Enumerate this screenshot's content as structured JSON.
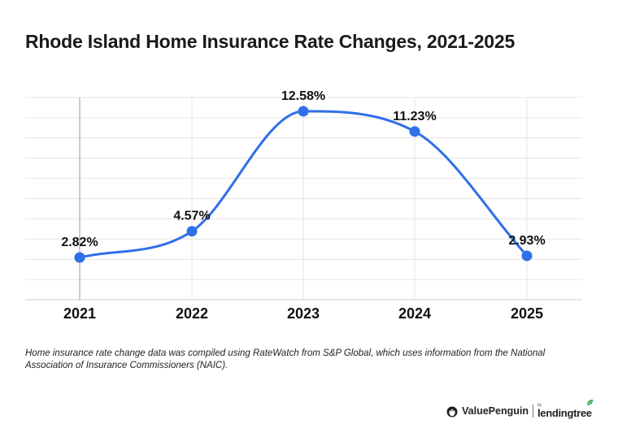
{
  "title": "Rhode Island Home Insurance Rate Changes, 2021-2025",
  "chart_data": {
    "type": "line",
    "title": "Rhode Island Home Insurance Rate Changes, 2021-2025",
    "categories": [
      "2021",
      "2022",
      "2023",
      "2024",
      "2025"
    ],
    "values": [
      2.82,
      4.57,
      12.58,
      11.23,
      2.93
    ],
    "data_labels": [
      "2.82%",
      "4.57%",
      "12.58%",
      "11.23%",
      "2.93%"
    ],
    "xlabel": "",
    "ylabel": "",
    "ylim": [
      0,
      13.5
    ],
    "grid": true,
    "legend": "none",
    "smooth": true,
    "colors": {
      "line": "#2f6fe8",
      "marker": "#2f6fe8",
      "grid": "#e4e4e4"
    }
  },
  "footnote": "Home insurance rate change data was compiled using RateWatch from S&P Global, which uses information from the National Association of Insurance Commissioners (NAIC).",
  "logos": {
    "valuepenguin": "ValuePenguin",
    "lendingtree_small": "by",
    "lendingtree": "lendingtree",
    "valuepenguin_icon": "penguin-icon",
    "lendingtree_icon": "leaf-icon"
  }
}
